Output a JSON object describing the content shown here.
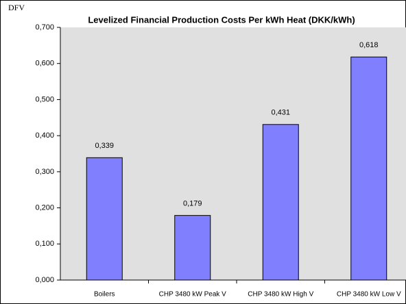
{
  "chart_data": {
    "type": "bar",
    "logo": "DFV",
    "title": "Levelized Financial Production Costs Per kWh Heat (DKK/kWh)",
    "categories": [
      "Boilers",
      "CHP 3480 kW Peak V",
      "CHP 3480 kW High V",
      "CHP 3480 kW Low V"
    ],
    "values": [
      0.339,
      0.179,
      0.431,
      0.618
    ],
    "value_labels": [
      "0,339",
      "0,179",
      "0,431",
      "0,618"
    ],
    "color": "#8080ff",
    "ylim": [
      0,
      0.7
    ],
    "yticks": [
      {
        "value": 0,
        "label": "0,000"
      },
      {
        "value": 0.1,
        "label": "0,100"
      },
      {
        "value": 0.2,
        "label": "0,200"
      },
      {
        "value": 0.3,
        "label": "0,300"
      },
      {
        "value": 0.4,
        "label": "0,400"
      },
      {
        "value": 0.5,
        "label": "0,500"
      },
      {
        "value": 0.6,
        "label": "0,600"
      },
      {
        "value": 0.7,
        "label": "0,700"
      }
    ],
    "grid": false
  }
}
